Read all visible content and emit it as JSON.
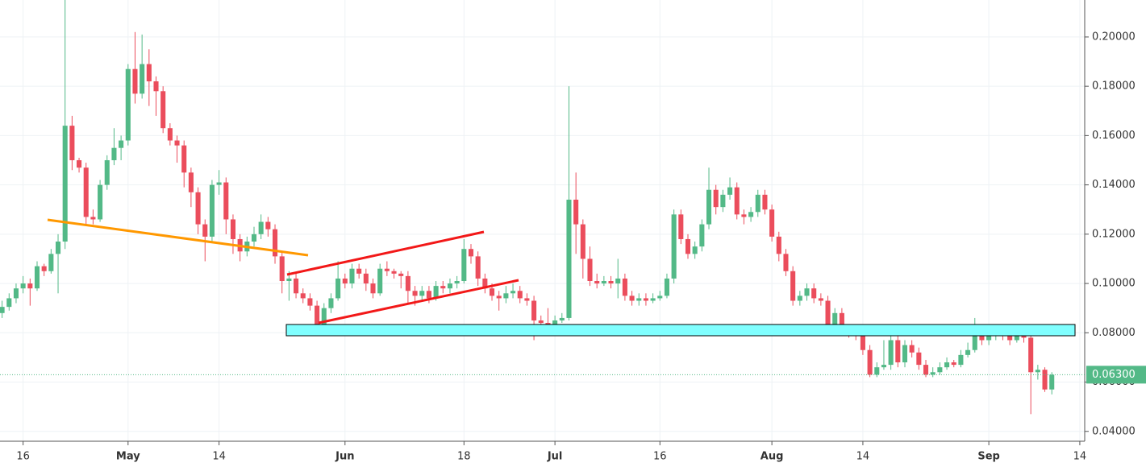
{
  "chart_data": {
    "type": "candlestick",
    "x": [
      "04-13",
      "04-14",
      "04-15",
      "04-16",
      "04-17",
      "04-18",
      "04-19",
      "04-20",
      "04-21",
      "04-22",
      "04-23",
      "04-24",
      "04-25",
      "04-26",
      "04-27",
      "04-28",
      "04-29",
      "04-30",
      "05-01",
      "05-02",
      "05-03",
      "05-04",
      "05-05",
      "05-06",
      "05-07",
      "05-08",
      "05-09",
      "05-10",
      "05-11",
      "05-12",
      "05-13",
      "05-14",
      "05-15",
      "05-16",
      "05-17",
      "05-18",
      "05-19",
      "05-20",
      "05-21",
      "05-22",
      "05-23",
      "05-24",
      "05-25",
      "05-26",
      "05-27",
      "05-28",
      "05-29",
      "05-30",
      "05-31",
      "06-01",
      "06-02",
      "06-03",
      "06-04",
      "06-05",
      "06-06",
      "06-07",
      "06-08",
      "06-09",
      "06-10",
      "06-11",
      "06-12",
      "06-13",
      "06-14",
      "06-15",
      "06-16",
      "06-17",
      "06-18",
      "06-19",
      "06-20",
      "06-21",
      "06-22",
      "06-23",
      "06-24",
      "06-25",
      "06-26",
      "06-27",
      "06-28",
      "06-29",
      "06-30",
      "07-01",
      "07-02",
      "07-03",
      "07-04",
      "07-05",
      "07-06",
      "07-07",
      "07-08",
      "07-09",
      "07-10",
      "07-11",
      "07-12",
      "07-13",
      "07-14",
      "07-15",
      "07-16",
      "07-17",
      "07-18",
      "07-19",
      "07-20",
      "07-21",
      "07-22",
      "07-23",
      "07-24",
      "07-25",
      "07-26",
      "07-27",
      "07-28",
      "07-29",
      "07-30",
      "07-31",
      "08-01",
      "08-02",
      "08-03",
      "08-04",
      "08-05",
      "08-06",
      "08-07",
      "08-08",
      "08-09",
      "08-10",
      "08-11",
      "08-12",
      "08-13",
      "08-14",
      "08-15",
      "08-16",
      "08-17",
      "08-18",
      "08-19",
      "08-20",
      "08-21",
      "08-22",
      "08-23",
      "08-24",
      "08-25",
      "08-26",
      "08-27",
      "08-28",
      "08-29",
      "08-30",
      "08-31",
      "09-01",
      "09-02",
      "09-03",
      "09-04",
      "09-05",
      "09-06",
      "09-07",
      "09-08",
      "09-09",
      "09-10"
    ],
    "open": [
      0.088,
      0.0905,
      0.094,
      0.098,
      0.1,
      0.098,
      0.107,
      0.105,
      0.112,
      0.117,
      0.164,
      0.15,
      0.147,
      0.127,
      0.126,
      0.14,
      0.15,
      0.155,
      0.158,
      0.187,
      0.177,
      0.189,
      0.182,
      0.178,
      0.163,
      0.158,
      0.156,
      0.145,
      0.137,
      0.124,
      0.119,
      0.14,
      0.141,
      0.126,
      0.118,
      0.113,
      0.117,
      0.12,
      0.125,
      0.122,
      0.111,
      0.101,
      0.102,
      0.096,
      0.094,
      0.091,
      0.083,
      0.09,
      0.094,
      0.102,
      0.1,
      0.106,
      0.104,
      0.1,
      0.096,
      0.106,
      0.105,
      0.104,
      0.103,
      0.097,
      0.095,
      0.097,
      0.094,
      0.099,
      0.098,
      0.1,
      0.101,
      0.114,
      0.111,
      0.102,
      0.098,
      0.095,
      0.094,
      0.096,
      0.097,
      0.094,
      0.093,
      0.085,
      0.084,
      0.082,
      0.085,
      0.086,
      0.134,
      0.124,
      0.11,
      0.101,
      0.1,
      0.101,
      0.1,
      0.102,
      0.095,
      0.093,
      0.094,
      0.093,
      0.094,
      0.095,
      0.102,
      0.128,
      0.118,
      0.112,
      0.115,
      0.124,
      0.138,
      0.131,
      0.136,
      0.139,
      0.128,
      0.127,
      0.129,
      0.136,
      0.13,
      0.119,
      0.112,
      0.105,
      0.093,
      0.095,
      0.098,
      0.094,
      0.093,
      0.081,
      0.088,
      0.081,
      0.08,
      0.079,
      0.073,
      0.063,
      0.066,
      0.067,
      0.077,
      0.068,
      0.075,
      0.072,
      0.067,
      0.063,
      0.064,
      0.066,
      0.068,
      0.067,
      0.071,
      0.073,
      0.082,
      0.077,
      0.079,
      0.081,
      0.079,
      0.077,
      0.079,
      0.078,
      0.064,
      0.065,
      0.057
    ],
    "high": [
      0.093,
      0.096,
      0.1,
      0.103,
      0.102,
      0.109,
      0.108,
      0.114,
      0.12,
      0.215,
      0.168,
      0.151,
      0.149,
      0.13,
      0.142,
      0.152,
      0.163,
      0.16,
      0.189,
      0.202,
      0.201,
      0.195,
      0.184,
      0.18,
      0.165,
      0.16,
      0.158,
      0.147,
      0.139,
      0.126,
      0.142,
      0.146,
      0.143,
      0.128,
      0.12,
      0.119,
      0.123,
      0.128,
      0.127,
      0.124,
      0.113,
      0.105,
      0.104,
      0.098,
      0.096,
      0.093,
      0.092,
      0.096,
      0.109,
      0.104,
      0.108,
      0.108,
      0.106,
      0.102,
      0.108,
      0.109,
      0.106,
      0.105,
      0.105,
      0.099,
      0.099,
      0.099,
      0.101,
      0.101,
      0.102,
      0.103,
      0.118,
      0.116,
      0.113,
      0.104,
      0.1,
      0.097,
      0.099,
      0.1,
      0.099,
      0.096,
      0.095,
      0.087,
      0.09,
      0.087,
      0.088,
      0.18,
      0.145,
      0.126,
      0.115,
      0.104,
      0.103,
      0.103,
      0.11,
      0.104,
      0.097,
      0.096,
      0.096,
      0.096,
      0.097,
      0.104,
      0.13,
      0.13,
      0.12,
      0.117,
      0.126,
      0.147,
      0.14,
      0.138,
      0.143,
      0.141,
      0.13,
      0.131,
      0.138,
      0.138,
      0.132,
      0.121,
      0.114,
      0.107,
      0.097,
      0.1,
      0.1,
      0.096,
      0.095,
      0.09,
      0.09,
      0.083,
      0.082,
      0.081,
      0.075,
      0.068,
      0.077,
      0.079,
      0.079,
      0.077,
      0.077,
      0.074,
      0.069,
      0.066,
      0.068,
      0.07,
      0.069,
      0.073,
      0.076,
      0.086,
      0.083,
      0.081,
      0.082,
      0.082,
      0.08,
      0.083,
      0.08,
      0.08,
      0.067,
      0.066,
      0.064
    ],
    "low": [
      0.086,
      0.089,
      0.092,
      0.096,
      0.091,
      0.097,
      0.103,
      0.104,
      0.096,
      0.114,
      0.146,
      0.145,
      0.124,
      0.124,
      0.125,
      0.138,
      0.148,
      0.15,
      0.156,
      0.173,
      0.175,
      0.172,
      0.168,
      0.161,
      0.156,
      0.149,
      0.139,
      0.131,
      0.12,
      0.109,
      0.117,
      0.136,
      0.12,
      0.112,
      0.109,
      0.111,
      0.115,
      0.118,
      0.119,
      0.108,
      0.096,
      0.093,
      0.094,
      0.092,
      0.089,
      0.082,
      0.082,
      0.088,
      0.093,
      0.098,
      0.098,
      0.102,
      0.097,
      0.094,
      0.095,
      0.103,
      0.102,
      0.098,
      0.092,
      0.091,
      0.093,
      0.092,
      0.093,
      0.096,
      0.096,
      0.098,
      0.1,
      0.108,
      0.099,
      0.096,
      0.093,
      0.089,
      0.092,
      0.094,
      0.092,
      0.091,
      0.077,
      0.082,
      0.081,
      0.081,
      0.084,
      0.085,
      0.112,
      0.102,
      0.099,
      0.098,
      0.099,
      0.098,
      0.094,
      0.093,
      0.091,
      0.091,
      0.091,
      0.092,
      0.093,
      0.094,
      0.1,
      0.116,
      0.11,
      0.11,
      0.113,
      0.122,
      0.128,
      0.129,
      0.134,
      0.126,
      0.124,
      0.125,
      0.127,
      0.128,
      0.117,
      0.109,
      0.103,
      0.091,
      0.091,
      0.093,
      0.092,
      0.091,
      0.079,
      0.08,
      0.079,
      0.078,
      0.077,
      0.071,
      0.062,
      0.062,
      0.065,
      0.065,
      0.066,
      0.066,
      0.07,
      0.065,
      0.062,
      0.062,
      0.063,
      0.065,
      0.066,
      0.066,
      0.07,
      0.072,
      0.075,
      0.075,
      0.077,
      0.077,
      0.075,
      0.076,
      0.076,
      0.047,
      0.061,
      0.056,
      0.055
    ],
    "close": [
      0.0905,
      0.094,
      0.098,
      0.1,
      0.098,
      0.107,
      0.105,
      0.112,
      0.117,
      0.164,
      0.15,
      0.147,
      0.127,
      0.126,
      0.14,
      0.15,
      0.155,
      0.158,
      0.187,
      0.177,
      0.189,
      0.182,
      0.178,
      0.163,
      0.158,
      0.156,
      0.145,
      0.137,
      0.124,
      0.119,
      0.14,
      0.141,
      0.126,
      0.118,
      0.113,
      0.117,
      0.12,
      0.125,
      0.122,
      0.111,
      0.101,
      0.102,
      0.096,
      0.094,
      0.091,
      0.083,
      0.09,
      0.094,
      0.102,
      0.1,
      0.106,
      0.104,
      0.1,
      0.096,
      0.106,
      0.105,
      0.104,
      0.103,
      0.097,
      0.095,
      0.097,
      0.094,
      0.099,
      0.098,
      0.1,
      0.101,
      0.114,
      0.111,
      0.102,
      0.098,
      0.095,
      0.094,
      0.096,
      0.097,
      0.094,
      0.093,
      0.085,
      0.084,
      0.082,
      0.085,
      0.086,
      0.134,
      0.124,
      0.11,
      0.101,
      0.1,
      0.101,
      0.1,
      0.102,
      0.095,
      0.093,
      0.094,
      0.093,
      0.094,
      0.095,
      0.102,
      0.128,
      0.118,
      0.112,
      0.115,
      0.124,
      0.138,
      0.131,
      0.136,
      0.139,
      0.128,
      0.127,
      0.129,
      0.136,
      0.13,
      0.119,
      0.112,
      0.105,
      0.093,
      0.095,
      0.098,
      0.094,
      0.093,
      0.081,
      0.088,
      0.081,
      0.08,
      0.079,
      0.073,
      0.063,
      0.066,
      0.067,
      0.077,
      0.068,
      0.075,
      0.072,
      0.067,
      0.063,
      0.064,
      0.066,
      0.068,
      0.067,
      0.071,
      0.073,
      0.082,
      0.077,
      0.079,
      0.081,
      0.079,
      0.077,
      0.079,
      0.078,
      0.064,
      0.065,
      0.057,
      0.063
    ],
    "up_color": "#53b987",
    "down_color": "#eb4d5c",
    "xlim": [
      "04-13",
      "09-15"
    ],
    "xticks": [
      {
        "value": "04-16",
        "label": "16"
      },
      {
        "value": "05-01",
        "label": "May"
      },
      {
        "value": "05-14",
        "label": "14"
      },
      {
        "value": "06-01",
        "label": "Jun"
      },
      {
        "value": "06-18",
        "label": "18"
      },
      {
        "value": "07-01",
        "label": "Jul"
      },
      {
        "value": "07-16",
        "label": "16"
      },
      {
        "value": "08-01",
        "label": "Aug"
      },
      {
        "value": "08-14",
        "label": "14"
      },
      {
        "value": "09-01",
        "label": "Sep"
      },
      {
        "value": "09-14",
        "label": "14"
      }
    ],
    "ylim": [
      0.036,
      0.215
    ],
    "yticks": [
      {
        "value": 0.04,
        "label": "0.04000"
      },
      {
        "value": 0.06,
        "label": "0.06000"
      },
      {
        "value": 0.08,
        "label": "0.08000"
      },
      {
        "value": 0.1,
        "label": "0.10000"
      },
      {
        "value": 0.12,
        "label": "0.12000"
      },
      {
        "value": 0.14,
        "label": "0.14000"
      },
      {
        "value": 0.16,
        "label": "0.16000"
      },
      {
        "value": 0.18,
        "label": "0.18000"
      },
      {
        "value": 0.2,
        "label": "0.20000"
      }
    ],
    "last_price": {
      "value": 0.063,
      "label": "0.06300"
    },
    "grid": true
  }
}
